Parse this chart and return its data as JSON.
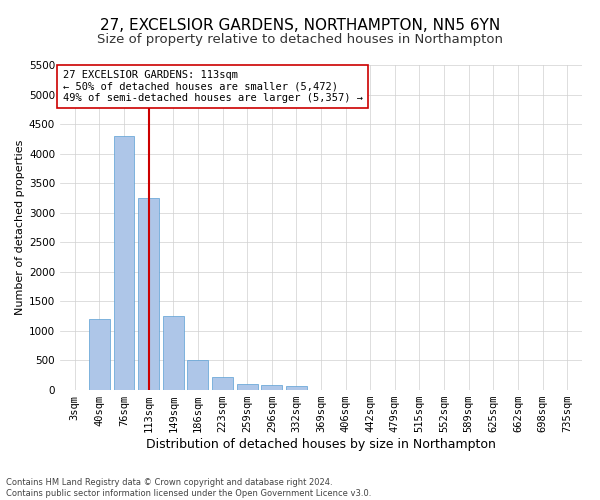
{
  "title_line1": "27, EXCELSIOR GARDENS, NORTHAMPTON, NN5 6YN",
  "title_line2": "Size of property relative to detached houses in Northampton",
  "xlabel": "Distribution of detached houses by size in Northampton",
  "ylabel": "Number of detached properties",
  "footer_line1": "Contains HM Land Registry data © Crown copyright and database right 2024.",
  "footer_line2": "Contains public sector information licensed under the Open Government Licence v3.0.",
  "categories": [
    "3sqm",
    "40sqm",
    "76sqm",
    "113sqm",
    "149sqm",
    "186sqm",
    "223sqm",
    "259sqm",
    "296sqm",
    "332sqm",
    "369sqm",
    "406sqm",
    "442sqm",
    "479sqm",
    "515sqm",
    "552sqm",
    "589sqm",
    "625sqm",
    "662sqm",
    "698sqm",
    "735sqm"
  ],
  "values": [
    0,
    1200,
    4300,
    3250,
    1250,
    500,
    220,
    100,
    80,
    60,
    0,
    0,
    0,
    0,
    0,
    0,
    0,
    0,
    0,
    0,
    0
  ],
  "bar_color": "#aec6e8",
  "bar_edge_color": "#5a9fd4",
  "red_line_index": 3,
  "red_line_color": "#cc0000",
  "annotation_line1": "27 EXCELSIOR GARDENS: 113sqm",
  "annotation_line2": "← 50% of detached houses are smaller (5,472)",
  "annotation_line3": "49% of semi-detached houses are larger (5,357) →",
  "annotation_box_color": "#ffffff",
  "annotation_box_edge_color": "#cc0000",
  "ylim": [
    0,
    5500
  ],
  "yticks": [
    0,
    500,
    1000,
    1500,
    2000,
    2500,
    3000,
    3500,
    4000,
    4500,
    5000,
    5500
  ],
  "background_color": "#ffffff",
  "grid_color": "#d0d0d0",
  "title1_fontsize": 11,
  "title2_fontsize": 9.5,
  "xlabel_fontsize": 9,
  "ylabel_fontsize": 8,
  "tick_fontsize": 7.5,
  "annotation_fontsize": 7.5,
  "footer_fontsize": 6
}
